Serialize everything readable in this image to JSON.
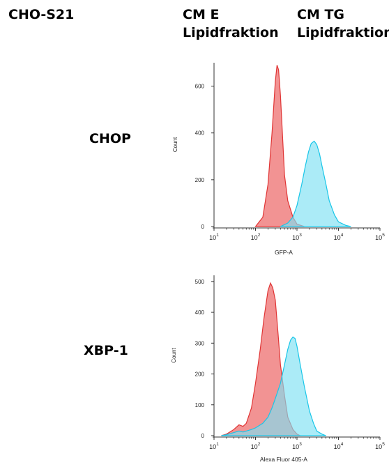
{
  "header": {
    "cell_line": "CHO-S21",
    "col1_line1": "CM E",
    "col1_line2": "Lipidfraktion",
    "col2_line1": "CM TG",
    "col2_line2": "Lipidfraktion"
  },
  "rows": [
    {
      "label": "CHOP"
    },
    {
      "label": "XBP-1"
    }
  ],
  "colors": {
    "series_a": "#f08080",
    "series_a_stroke": "#e03535",
    "series_b": "#7ee0f2",
    "series_b_stroke": "#19c6e8"
  },
  "chart_data": [
    {
      "type": "area",
      "ylabel": "Count",
      "xlabel": "GFP-A",
      "xscale": "log",
      "xlim": [
        10,
        100000
      ],
      "ylim": [
        0,
        700
      ],
      "yticks": [
        0,
        200,
        400,
        600
      ],
      "xticks": [
        10,
        100,
        1000,
        10000,
        100000
      ],
      "xtick_labels": [
        {
          "b": "10",
          "e": "1"
        },
        {
          "b": "10",
          "e": "2"
        },
        {
          "b": "10",
          "e": "3"
        },
        {
          "b": "10",
          "e": "4"
        },
        {
          "b": "10",
          "e": "5"
        }
      ],
      "series": [
        {
          "color": "series_a",
          "x": [
            100,
            150,
            200,
            250,
            300,
            330,
            360,
            400,
            450,
            500,
            600,
            800,
            1000,
            1500
          ],
          "y": [
            0,
            40,
            180,
            400,
            620,
            690,
            670,
            560,
            380,
            220,
            110,
            40,
            10,
            0
          ]
        },
        {
          "color": "series_b",
          "x": [
            400,
            600,
            800,
            1000,
            1300,
            1600,
            1900,
            2200,
            2600,
            3000,
            3500,
            4000,
            5000,
            6000,
            8000,
            10000,
            15000,
            20000
          ],
          "y": [
            0,
            15,
            40,
            90,
            180,
            260,
            320,
            355,
            365,
            350,
            310,
            260,
            180,
            110,
            50,
            20,
            5,
            0
          ]
        }
      ]
    },
    {
      "type": "area",
      "ylabel": "Count",
      "xlabel": "Alexa Fluor 405-A",
      "xscale": "log",
      "xlim": [
        10,
        100000
      ],
      "ylim": [
        0,
        520
      ],
      "yticks": [
        0,
        100,
        200,
        300,
        400,
        500
      ],
      "xticks": [
        10,
        100,
        1000,
        10000,
        100000
      ],
      "xtick_labels": [
        {
          "b": "10",
          "e": "1"
        },
        {
          "b": "10",
          "e": "2"
        },
        {
          "b": "10",
          "e": "3"
        },
        {
          "b": "10",
          "e": "4"
        },
        {
          "b": "10",
          "e": "5"
        }
      ],
      "series": [
        {
          "color": "series_a",
          "x": [
            15,
            20,
            30,
            40,
            50,
            60,
            80,
            100,
            130,
            160,
            200,
            230,
            260,
            300,
            350,
            400,
            500,
            600,
            800,
            1000,
            1200
          ],
          "y": [
            0,
            5,
            20,
            35,
            30,
            40,
            90,
            170,
            280,
            380,
            470,
            495,
            480,
            440,
            330,
            230,
            130,
            60,
            20,
            5,
            0
          ]
        },
        {
          "color": "series_b",
          "x": [
            15,
            20,
            30,
            40,
            50,
            60,
            80,
            100,
            150,
            200,
            250,
            300,
            400,
            500,
            600,
            700,
            800,
            900,
            1000,
            1200,
            1500,
            2000,
            2500,
            3000,
            4000,
            5000
          ],
          "y": [
            0,
            3,
            10,
            15,
            12,
            15,
            20,
            25,
            40,
            60,
            90,
            120,
            170,
            230,
            280,
            310,
            320,
            315,
            290,
            230,
            160,
            80,
            40,
            15,
            5,
            0
          ]
        }
      ]
    }
  ]
}
